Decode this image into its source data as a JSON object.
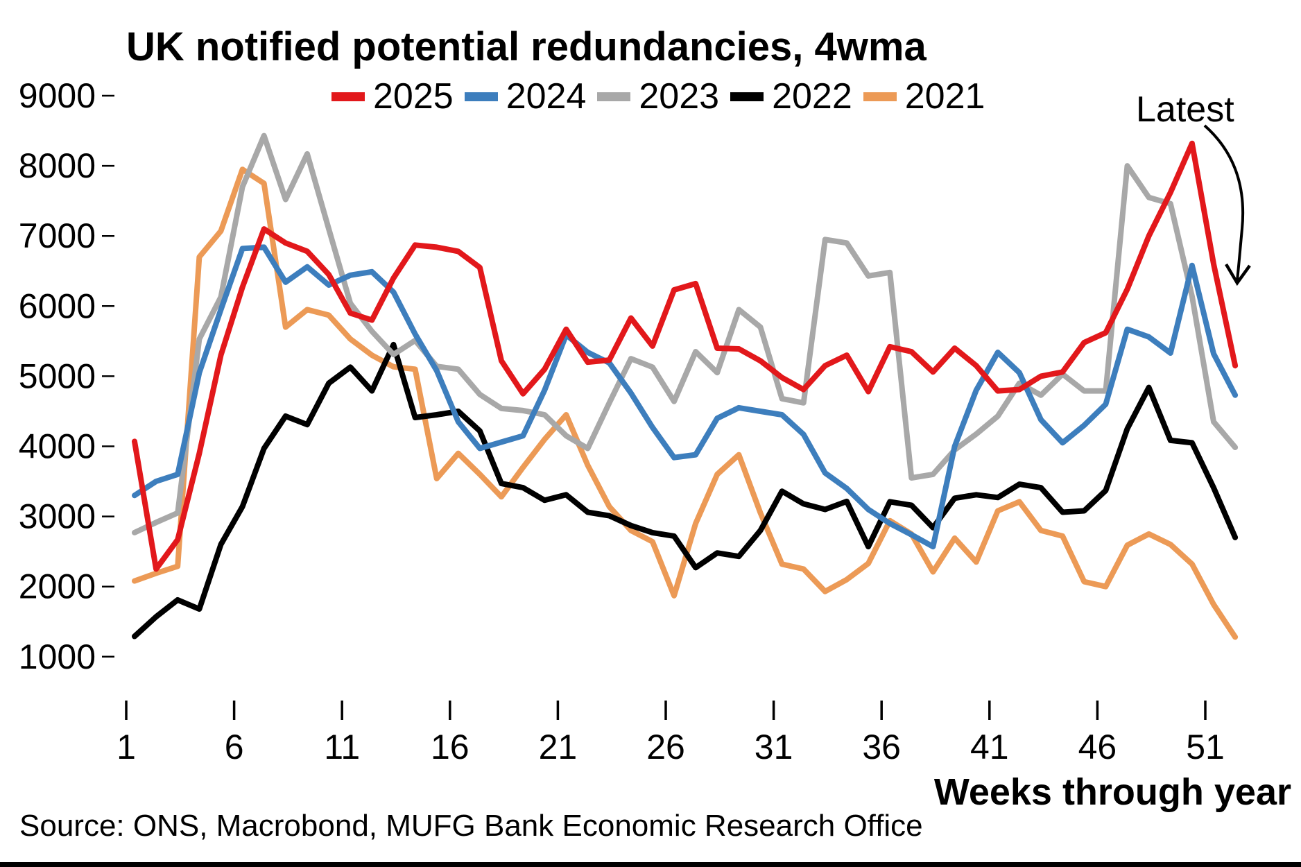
{
  "title": "UK notified potential redundancies, 4wma",
  "annotation": {
    "label": "Latest"
  },
  "source": "Source: ONS, Macrobond, MUFG Bank Economic Research Office",
  "chart_data": {
    "type": "line",
    "title": "UK notified potential redundancies, 4wma",
    "xlabel": "Weeks through year",
    "ylabel": "",
    "x": [
      1,
      2,
      3,
      4,
      5,
      6,
      7,
      8,
      9,
      10,
      11,
      12,
      13,
      14,
      15,
      16,
      17,
      18,
      19,
      20,
      21,
      22,
      23,
      24,
      25,
      26,
      27,
      28,
      29,
      30,
      31,
      32,
      33,
      34,
      35,
      36,
      37,
      38,
      39,
      40,
      41,
      42,
      43,
      44,
      45,
      46,
      47,
      48,
      49,
      50,
      51,
      52
    ],
    "x_ticks": [
      1,
      6,
      11,
      16,
      21,
      26,
      31,
      36,
      41,
      46,
      51
    ],
    "y_ticks": [
      9000,
      8000,
      7000,
      6000,
      5000,
      4000,
      3000,
      2000,
      1000
    ],
    "ylim": [
      500,
      9400
    ],
    "xlim": [
      1,
      52
    ],
    "grid": false,
    "legend_position": "top",
    "series": [
      {
        "name": "2025",
        "color": "#e2181b",
        "values": [
          4070,
          2250,
          2670,
          3900,
          5300,
          6270,
          7100,
          6900,
          6780,
          6450,
          5900,
          5800,
          6400,
          6870,
          6840,
          6780,
          6550,
          5220,
          4750,
          5100,
          5670,
          5200,
          5230,
          5830,
          5430,
          6230,
          6320,
          5400,
          5390,
          5220,
          4980,
          4810,
          5150,
          5300,
          4780,
          5420,
          5350,
          5060,
          5400,
          5150,
          4790,
          4810,
          5000,
          5060,
          5480,
          5620,
          6240,
          7000,
          7620,
          8320,
          6600,
          5150
        ]
      },
      {
        "name": "2024",
        "color": "#3d7ebd",
        "values": [
          3300,
          3500,
          3600,
          5050,
          5950,
          6820,
          6840,
          6340,
          6560,
          6300,
          6440,
          6490,
          6200,
          5600,
          5080,
          4350,
          3970,
          4060,
          4150,
          4800,
          5590,
          5340,
          5190,
          4760,
          4270,
          3840,
          3880,
          4400,
          4550,
          4500,
          4450,
          4170,
          3620,
          3400,
          3100,
          2900,
          2740,
          2570,
          4000,
          4800,
          5340,
          5050,
          4380,
          4050,
          4300,
          4600,
          5670,
          5560,
          5330,
          6580,
          5320,
          4730
        ]
      },
      {
        "name": "2023",
        "color": "#a8a8a8",
        "values": [
          2770,
          2915,
          3050,
          5530,
          6130,
          7700,
          8430,
          7520,
          8170,
          7100,
          6040,
          5640,
          5310,
          5510,
          5140,
          5100,
          4740,
          4540,
          4510,
          4450,
          4150,
          3970,
          4620,
          5250,
          5130,
          4640,
          5350,
          5050,
          5950,
          5700,
          4680,
          4620,
          6950,
          6900,
          6430,
          6480,
          3550,
          3600,
          3950,
          4175,
          4430,
          4900,
          4730,
          5030,
          4790,
          4790,
          8000,
          7550,
          7460,
          6140,
          4350,
          3985
        ]
      },
      {
        "name": "2022",
        "color": "#000000",
        "values": [
          1290,
          1570,
          1810,
          1680,
          2600,
          3140,
          3970,
          4430,
          4310,
          4900,
          5130,
          4790,
          5450,
          4410,
          4450,
          4500,
          4220,
          3470,
          3410,
          3230,
          3310,
          3060,
          3010,
          2870,
          2770,
          2720,
          2270,
          2480,
          2430,
          2800,
          3360,
          3180,
          3100,
          3215,
          2570,
          3210,
          3160,
          2840,
          3260,
          3310,
          3270,
          3460,
          3410,
          3060,
          3080,
          3370,
          4250,
          4840,
          4085,
          4050,
          3410,
          2700
        ]
      },
      {
        "name": "2021",
        "color": "#ec9a56",
        "values": [
          2080,
          2190,
          2290,
          6700,
          7070,
          7950,
          7750,
          5700,
          5950,
          5870,
          5530,
          5300,
          5135,
          5100,
          3540,
          3900,
          3600,
          3280,
          3700,
          4100,
          4450,
          3730,
          3140,
          2800,
          2640,
          1870,
          2900,
          3600,
          3880,
          3050,
          2320,
          2250,
          1930,
          2100,
          2330,
          2940,
          2750,
          2210,
          2690,
          2350,
          3080,
          3210,
          2800,
          2720,
          2070,
          2000,
          2590,
          2750,
          2600,
          2320,
          1745,
          1280
        ]
      }
    ]
  }
}
